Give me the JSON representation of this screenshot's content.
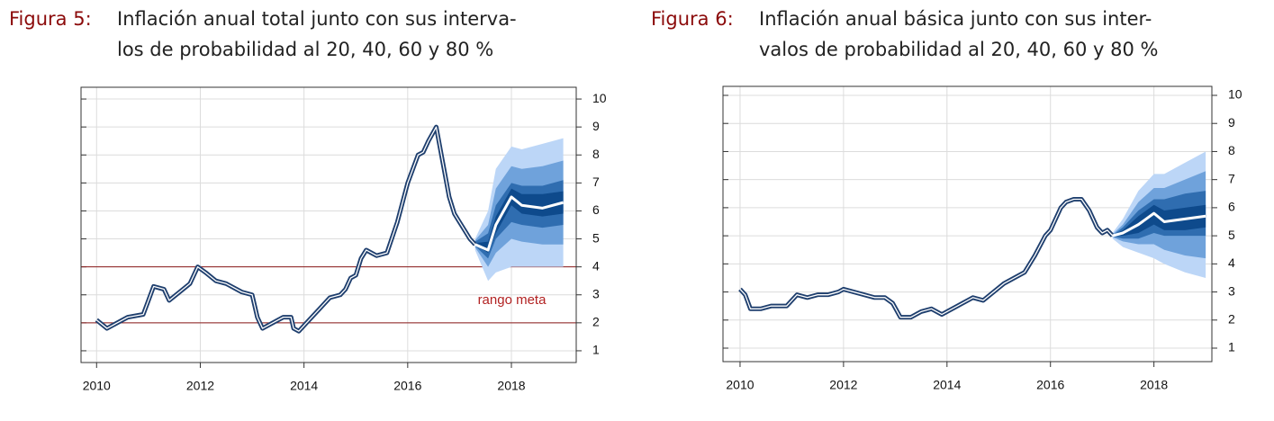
{
  "chart_data": [
    {
      "type": "fan",
      "figure_label": "Figura 5:",
      "title": [
        "Inflación anual total junto con sus interva-",
        "los de probabilidad al 20, 40, 60 y 80 %"
      ],
      "x": [
        2010.0,
        2010.2,
        2010.4,
        2010.6,
        2010.9,
        2011.0,
        2011.1,
        2011.3,
        2011.4,
        2011.6,
        2011.8,
        2011.95,
        2012.1,
        2012.3,
        2012.5,
        2012.8,
        2013.0,
        2013.1,
        2013.2,
        2013.4,
        2013.6,
        2013.75,
        2013.8,
        2013.9,
        2014.1,
        2014.3,
        2014.5,
        2014.7,
        2014.8,
        2014.9,
        2015.0,
        2015.1,
        2015.2,
        2015.4,
        2015.6,
        2015.8,
        2015.9,
        2016.0,
        2016.2,
        2016.3,
        2016.4,
        2016.55,
        2016.7,
        2016.8,
        2016.9,
        2017.0,
        2017.2,
        2017.3
      ],
      "values": [
        2.1,
        1.8,
        2.0,
        2.2,
        2.3,
        2.8,
        3.3,
        3.2,
        2.8,
        3.1,
        3.4,
        4.0,
        3.8,
        3.5,
        3.4,
        3.1,
        3.0,
        2.2,
        1.8,
        2.0,
        2.2,
        2.2,
        1.8,
        1.7,
        2.1,
        2.5,
        2.9,
        3.0,
        3.2,
        3.6,
        3.7,
        4.3,
        4.6,
        4.4,
        4.5,
        5.6,
        6.3,
        7.0,
        8.0,
        8.1,
        8.5,
        9.0,
        7.5,
        6.5,
        5.9,
        5.6,
        5.0,
        4.8
      ],
      "line_color": "#1f3f6e",
      "forecast_x": [
        2017.3,
        2017.55,
        2017.7,
        2018.0,
        2018.2,
        2018.6,
        2019.0
      ],
      "forecast_values": [
        4.8,
        4.6,
        5.5,
        6.5,
        6.2,
        6.1,
        6.3
      ],
      "forecast_color": "#ffffff",
      "bands": [
        {
          "color": "#bcd6f7",
          "upper": [
            5.0,
            6.0,
            7.5,
            8.3,
            8.2,
            8.4,
            8.6
          ],
          "lower": [
            4.6,
            3.5,
            3.8,
            4.0,
            4.0,
            4.0,
            4.0
          ]
        },
        {
          "color": "#6fa2db",
          "upper": [
            4.95,
            5.5,
            6.8,
            7.6,
            7.5,
            7.6,
            7.8
          ],
          "lower": [
            4.7,
            4.0,
            4.5,
            5.0,
            4.9,
            4.8,
            4.8
          ]
        },
        {
          "color": "#2f6db0",
          "upper": [
            4.9,
            5.2,
            6.2,
            7.0,
            6.9,
            6.9,
            7.1
          ],
          "lower": [
            4.75,
            4.3,
            5.0,
            5.6,
            5.5,
            5.4,
            5.5
          ]
        },
        {
          "color": "#0e4a8c",
          "upper": [
            4.85,
            4.9,
            5.8,
            6.8,
            6.6,
            6.6,
            6.7
          ],
          "lower": [
            4.8,
            4.5,
            5.2,
            6.2,
            5.9,
            5.8,
            5.9
          ]
        }
      ],
      "hlines": [
        2,
        4
      ],
      "hline_color": "#8b1a1a",
      "annotation": {
        "text": "rango meta",
        "x": 2017.35,
        "y": 2.8,
        "color": "#b22222"
      },
      "xlim": [
        2009.7,
        2019.25
      ],
      "xticks": [
        2010,
        2012,
        2014,
        2016,
        2018
      ],
      "ylim": [
        0.58,
        10.42
      ],
      "yticks": [
        1,
        2,
        3,
        4,
        5,
        6,
        7,
        8,
        9,
        10
      ],
      "grid": true
    },
    {
      "type": "fan",
      "figure_label": "Figura 6:",
      "title": [
        "Inflación anual básica junto con sus inter-",
        "valos de probabilidad al 20, 40, 60 y 80 %"
      ],
      "x": [
        2010.0,
        2010.1,
        2010.2,
        2010.4,
        2010.6,
        2010.9,
        2011.0,
        2011.1,
        2011.3,
        2011.5,
        2011.7,
        2011.9,
        2012.0,
        2012.2,
        2012.4,
        2012.6,
        2012.8,
        2012.95,
        2013.1,
        2013.3,
        2013.5,
        2013.7,
        2013.9,
        2014.1,
        2014.3,
        2014.5,
        2014.7,
        2014.9,
        2015.1,
        2015.3,
        2015.5,
        2015.7,
        2015.9,
        2016.0,
        2016.2,
        2016.3,
        2016.45,
        2016.6,
        2016.75,
        2016.9,
        2017.0,
        2017.1,
        2017.2
      ],
      "values": [
        3.1,
        2.9,
        2.4,
        2.4,
        2.5,
        2.5,
        2.7,
        2.9,
        2.8,
        2.9,
        2.9,
        3.0,
        3.1,
        3.0,
        2.9,
        2.8,
        2.8,
        2.6,
        2.1,
        2.1,
        2.3,
        2.4,
        2.2,
        2.4,
        2.6,
        2.8,
        2.7,
        3.0,
        3.3,
        3.5,
        3.7,
        4.3,
        5.0,
        5.2,
        6.0,
        6.2,
        6.3,
        6.3,
        5.9,
        5.3,
        5.1,
        5.2,
        5.0
      ],
      "line_color": "#1f3f6e",
      "forecast_x": [
        2017.2,
        2017.4,
        2017.7,
        2018.0,
        2018.2,
        2018.6,
        2019.0
      ],
      "forecast_values": [
        5.0,
        5.1,
        5.4,
        5.8,
        5.5,
        5.6,
        5.7
      ],
      "forecast_color": "#ffffff",
      "bands": [
        {
          "color": "#bcd6f7",
          "upper": [
            5.1,
            5.6,
            6.6,
            7.2,
            7.2,
            7.6,
            8.0
          ],
          "lower": [
            4.9,
            4.6,
            4.4,
            4.2,
            4.0,
            3.7,
            3.5
          ]
        },
        {
          "color": "#6fa2db",
          "upper": [
            5.05,
            5.4,
            6.2,
            6.7,
            6.7,
            7.0,
            7.3
          ],
          "lower": [
            4.95,
            4.8,
            4.7,
            4.7,
            4.5,
            4.3,
            4.2
          ]
        },
        {
          "color": "#2f6db0",
          "upper": [
            5.02,
            5.3,
            5.9,
            6.3,
            6.3,
            6.5,
            6.6
          ],
          "lower": [
            4.97,
            4.9,
            4.9,
            5.1,
            5.0,
            5.0,
            5.0
          ]
        },
        {
          "color": "#0e4a8c",
          "upper": [
            5.01,
            5.2,
            5.7,
            6.1,
            5.9,
            6.0,
            6.1
          ],
          "lower": [
            4.99,
            5.0,
            5.1,
            5.4,
            5.2,
            5.2,
            5.3
          ]
        }
      ],
      "xlim": [
        2009.67,
        2019.12
      ],
      "xticks": [
        2010,
        2012,
        2014,
        2016,
        2018
      ],
      "ylim": [
        0.52,
        10.32
      ],
      "yticks": [
        1,
        2,
        3,
        4,
        5,
        6,
        7,
        8,
        9,
        10
      ],
      "grid": true
    }
  ]
}
